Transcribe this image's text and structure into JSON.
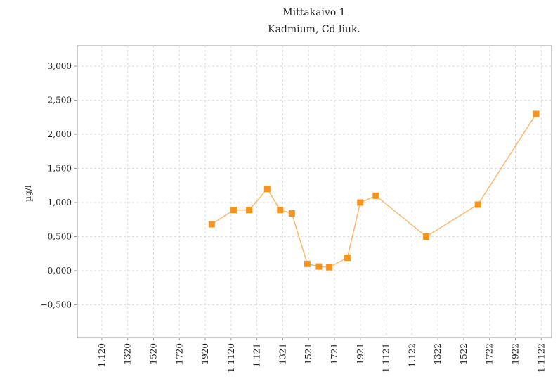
{
  "chart_data": {
    "type": "line",
    "title": "Mittakaivo 1",
    "subtitle": "Kadmium, Cd liuk.",
    "y_label": "µg/l",
    "x": [
      8.5,
      10.2,
      11.4,
      12.8,
      13.8,
      14.7,
      15.9,
      16.8,
      17.6,
      19.0,
      20.0,
      21.2,
      25.1,
      29.1,
      33.6
    ],
    "series": [
      {
        "name": "Cd liuk.",
        "color": "#f7941d",
        "values": [
          0.68,
          0.89,
          0.89,
          1.2,
          0.89,
          0.84,
          0.1,
          0.06,
          0.05,
          0.19,
          1.0,
          1.1,
          0.5,
          0.97,
          2.3
        ]
      }
    ],
    "xlim": [
      -1.9,
      34.8
    ],
    "xticks": [
      {
        "value": 0,
        "label": "1.120"
      },
      {
        "value": 2,
        "label": "1320"
      },
      {
        "value": 4,
        "label": "1520"
      },
      {
        "value": 6,
        "label": "1720"
      },
      {
        "value": 8,
        "label": "1920"
      },
      {
        "value": 10,
        "label": "1.1120"
      },
      {
        "value": 12,
        "label": "1.121"
      },
      {
        "value": 14,
        "label": "1321"
      },
      {
        "value": 16,
        "label": "1521"
      },
      {
        "value": 18,
        "label": "1721"
      },
      {
        "value": 20,
        "label": "1921"
      },
      {
        "value": 22,
        "label": "1.1121"
      },
      {
        "value": 24,
        "label": "1.122"
      },
      {
        "value": 26,
        "label": "1322"
      },
      {
        "value": 28,
        "label": "1522"
      },
      {
        "value": 30,
        "label": "1722"
      },
      {
        "value": 32,
        "label": "1922"
      },
      {
        "value": 34,
        "label": "1.1122"
      }
    ],
    "ylim": [
      -0.98,
      3.3
    ],
    "yticks": [
      {
        "value": -0.5,
        "label": "−0,500"
      },
      {
        "value": 0,
        "label": "0,000"
      },
      {
        "value": 0.5,
        "label": "0,500"
      },
      {
        "value": 1,
        "label": "1,000"
      },
      {
        "value": 1.5,
        "label": "1,500"
      },
      {
        "value": 2,
        "label": "2,000"
      },
      {
        "value": 2.5,
        "label": "2,500"
      },
      {
        "value": 3,
        "label": "3,000"
      }
    ],
    "grid": true
  }
}
